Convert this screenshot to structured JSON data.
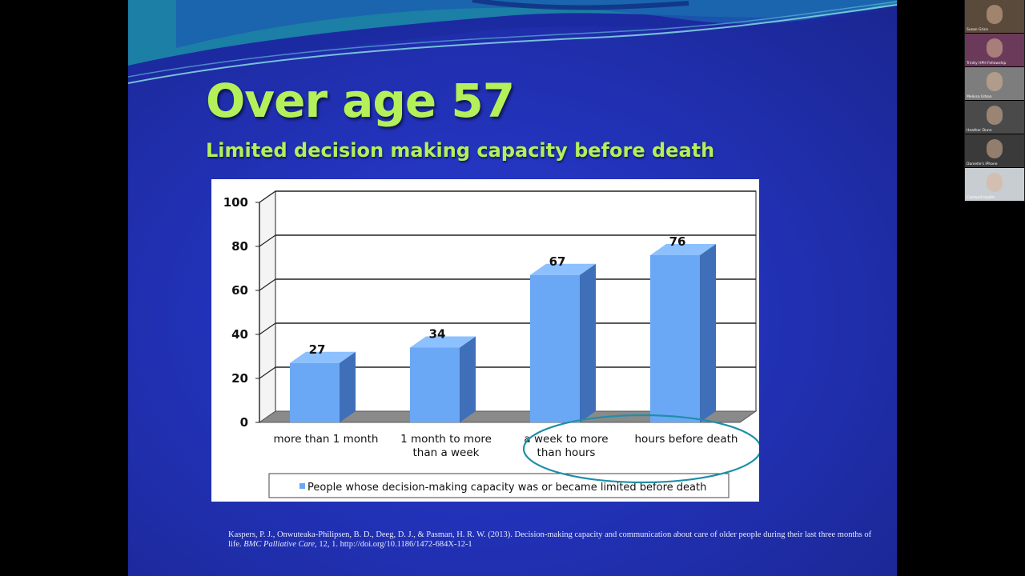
{
  "slide": {
    "title": "Over age 57",
    "subtitle": "Limited decision making capacity before death",
    "colors": {
      "background": "#2232b8",
      "title": "#b3f05a",
      "bar_front": "#6aa8f5",
      "bar_side": "#3f6fb8",
      "highlight_ellipse": "#1f8fa8"
    },
    "highlighted_categories": [
      "a week to more than hours",
      "hours before death"
    ]
  },
  "chart_data": {
    "type": "bar",
    "style": "3d-column",
    "categories": [
      [
        "more than 1 month"
      ],
      [
        "1 month to more",
        "than a week"
      ],
      [
        "a week to more",
        "than hours"
      ],
      [
        "hours before death"
      ]
    ],
    "series": [
      {
        "name": "People whose decision-making capacity was or became limited before death",
        "values": [
          27,
          34,
          67,
          76
        ]
      }
    ],
    "data_labels": [
      "27",
      "34",
      "67",
      "76"
    ],
    "yticks": [
      "0",
      "20",
      "40",
      "60",
      "80",
      "100"
    ],
    "ylim": [
      0,
      100
    ],
    "grid": true,
    "legend_position": "bottom"
  },
  "citation": {
    "text_1": "Kaspers, P. J., Onwuteaka-Philipsen, B. D., Deeg, D. J., & Pasman, H. R. W. (2013). Decision-making capacity and communication about care of older people during their last three months of life. ",
    "journal": "BMC Palliative Care",
    "text_2": ", 12, 1. http://doi.org/10.1186/1472-684X-12-1"
  },
  "participants": [
    {
      "name": "Susan Grice",
      "bg": "#5a4a3c"
    },
    {
      "name": "Trinity HPH Fellowship",
      "bg": "#6b3a5a"
    },
    {
      "name": "Melissa Urban",
      "bg": "#7d7d7d"
    },
    {
      "name": "Heather Dunn",
      "bg": "#4a4a4a"
    },
    {
      "name": "Danielle's iPhone",
      "bg": "#3a3a3a"
    },
    {
      "name": "Caldwell Health",
      "bg": "#c8cdd2"
    }
  ]
}
